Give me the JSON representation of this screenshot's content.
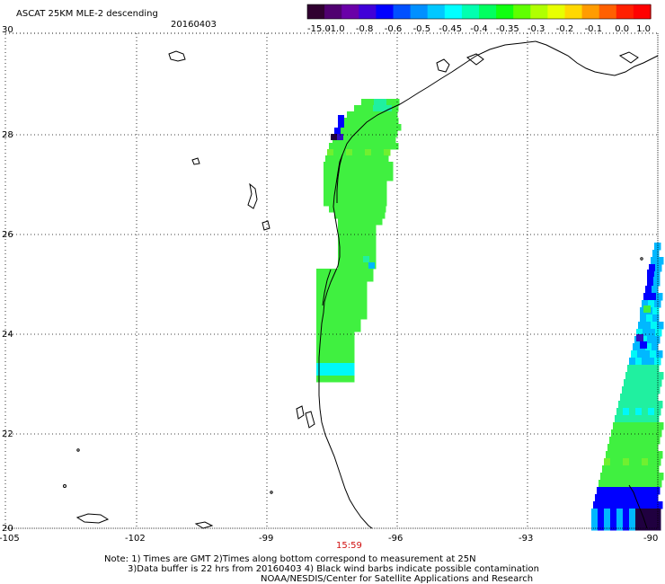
{
  "header": {
    "title": "ASCAT 25KM MLE-2 descending",
    "date": "20160403"
  },
  "colorbar": {
    "tick_labels": [
      "-15.0",
      "-1.0",
      "-0.8",
      "-0.6",
      "-0.5",
      "-0.45",
      "-0.4",
      "-0.35",
      "-0.3",
      "-0.2",
      "-0.1",
      "0.0",
      "1.0"
    ],
    "colors": [
      "#300030",
      "#500070",
      "#6a00a8",
      "#4000d8",
      "#0000ff",
      "#0050ff",
      "#0090ff",
      "#00c8ff",
      "#00ffff",
      "#00ffb0",
      "#00ff60",
      "#10ff10",
      "#60ff00",
      "#b0ff00",
      "#e8ff00",
      "#ffd800",
      "#ff9c00",
      "#ff6000",
      "#ff2000",
      "#ff0000"
    ]
  },
  "map": {
    "lat_labels": [
      "30",
      "28",
      "26",
      "24",
      "22",
      "20"
    ],
    "lon_labels": [
      "-105",
      "-102",
      "-99",
      "-96",
      "-93",
      "-90"
    ],
    "time_label": "15:59",
    "palette": {
      "g": "#40f040",
      "l": "#70f030",
      "t": "#20f0a0",
      "c": "#00f8f8",
      "s": "#00b8ff",
      "b": "#0000ff",
      "p": "#3010c0",
      "k": "#200040"
    }
  },
  "footer": {
    "line1": "Note: 1) Times are GMT 2)Times along bottom correspond to measurement at 25N",
    "line2": "3)Data buffer is 22 hrs from 20160403 4) Black wind barbs indicate possible contamination",
    "line3": "NOAA/NESDIS/Center for Satellite Applications and Research"
  }
}
